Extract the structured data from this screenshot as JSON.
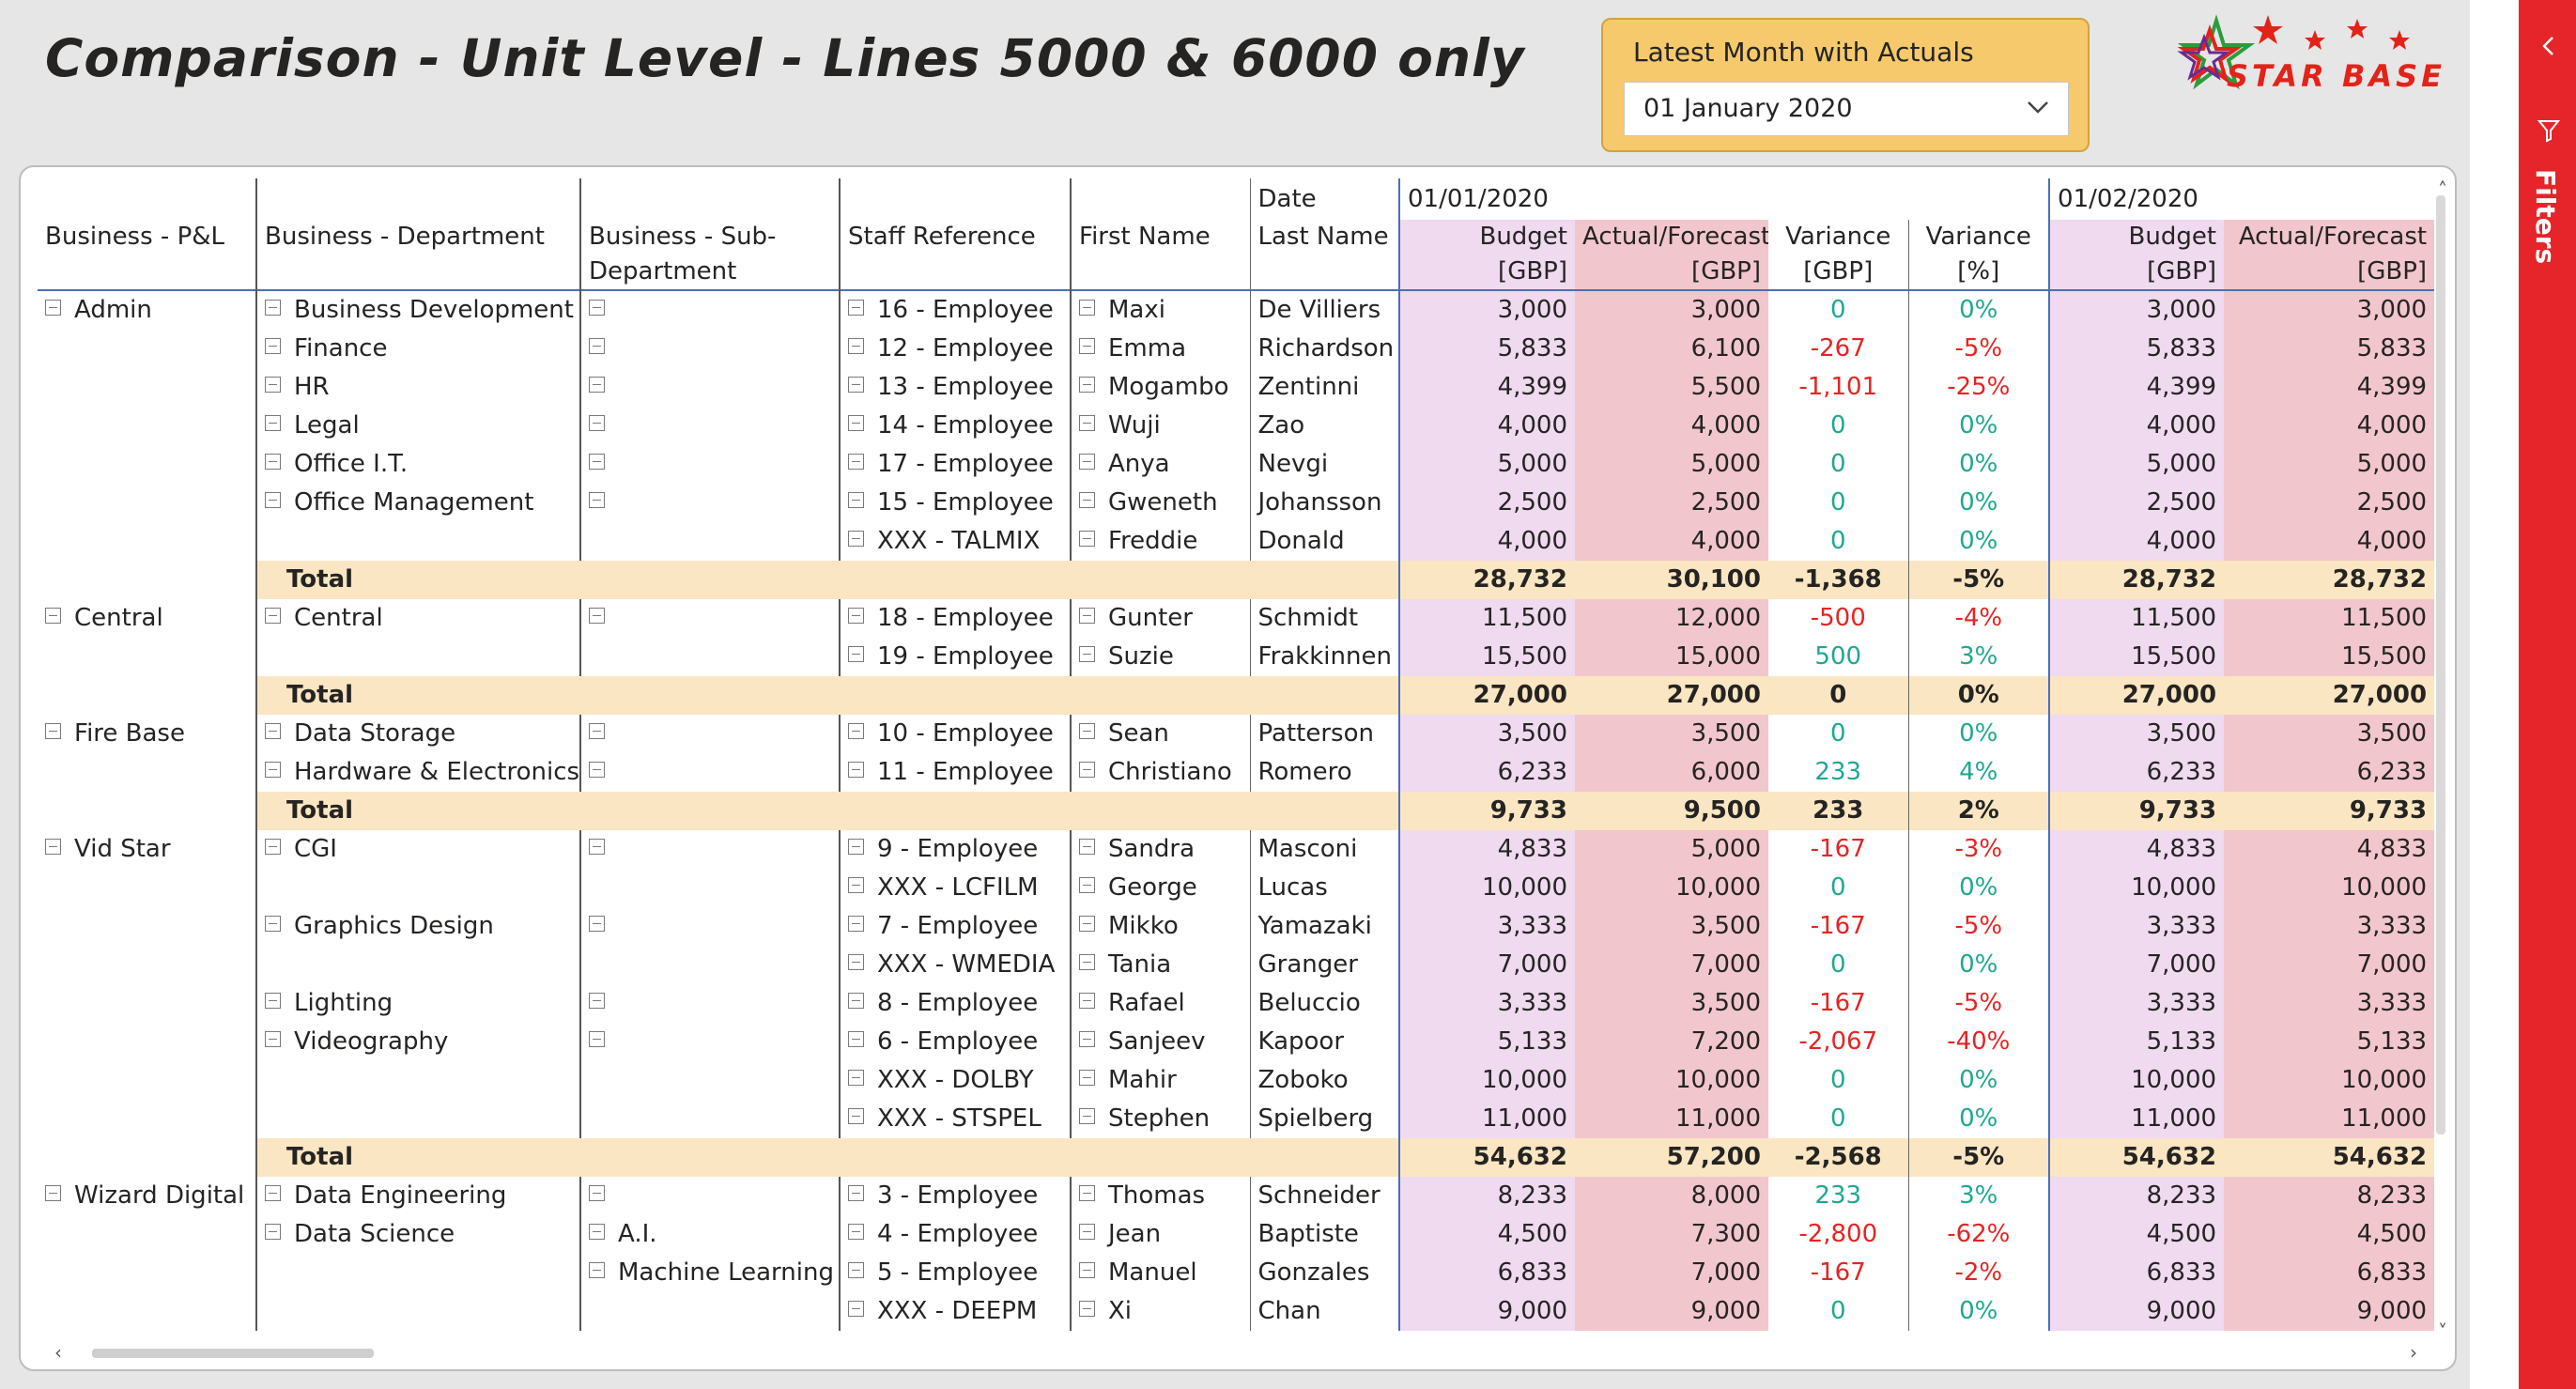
{
  "title": "Comparison - Unit Level - Lines 5000 & 6000 only",
  "slicer": {
    "label": "Latest Month with Actuals",
    "value": "01 January 2020"
  },
  "logo": {
    "text": "STAR BASE"
  },
  "filters_pane": {
    "label": "Filters"
  },
  "matrix": {
    "header_top": {
      "date_label": "Date",
      "month1": "01/01/2020",
      "month2": "01/02/2020"
    },
    "columns": {
      "pl": "Business - P&L",
      "dept": "Business - Department",
      "subdept": "Business - Sub-Department",
      "staff": "Staff Reference",
      "first": "First Name",
      "last": "Last Name",
      "budget": "Budget [GBP]",
      "actual": "Actual/Forecast [GBP]",
      "var_gbp": "Variance [GBP]",
      "var_pct": "Variance [%]",
      "budget2": "Budget [GBP]",
      "actual2": "Actual/Forecast [GBP]"
    },
    "rows": [
      {
        "type": "row",
        "pl": "Admin",
        "dept": "Business Development",
        "sub": "",
        "subExp": true,
        "staff": "16 - Employee",
        "first": "Maxi",
        "last": "De Villiers",
        "b": "3,000",
        "a": "3,000",
        "v": "0",
        "p": "0%",
        "vc": "green",
        "b2": "3,000",
        "a2": "3,000"
      },
      {
        "type": "row",
        "pl": "",
        "dept": "Finance",
        "sub": "",
        "subExp": true,
        "staff": "12 - Employee",
        "first": "Emma",
        "last": "Richardson",
        "b": "5,833",
        "a": "6,100",
        "v": "-267",
        "p": "-5%",
        "vc": "red",
        "b2": "5,833",
        "a2": "5,833"
      },
      {
        "type": "row",
        "pl": "",
        "dept": "HR",
        "sub": "",
        "subExp": true,
        "staff": "13 - Employee",
        "first": "Mogambo",
        "last": "Zentinni",
        "b": "4,399",
        "a": "5,500",
        "v": "-1,101",
        "p": "-25%",
        "vc": "red",
        "b2": "4,399",
        "a2": "4,399"
      },
      {
        "type": "row",
        "pl": "",
        "dept": "Legal",
        "sub": "",
        "subExp": true,
        "staff": "14 - Employee",
        "first": "Wuji",
        "last": "Zao",
        "b": "4,000",
        "a": "4,000",
        "v": "0",
        "p": "0%",
        "vc": "green",
        "b2": "4,000",
        "a2": "4,000"
      },
      {
        "type": "row",
        "pl": "",
        "dept": "Office I.T.",
        "sub": "",
        "subExp": true,
        "staff": "17 - Employee",
        "first": "Anya",
        "last": "Nevgi",
        "b": "5,000",
        "a": "5,000",
        "v": "0",
        "p": "0%",
        "vc": "green",
        "b2": "5,000",
        "a2": "5,000"
      },
      {
        "type": "row",
        "pl": "",
        "dept": "Office Management",
        "sub": "",
        "subExp": true,
        "staff": "15 - Employee",
        "first": "Gweneth",
        "last": "Johansson",
        "b": "2,500",
        "a": "2,500",
        "v": "0",
        "p": "0%",
        "vc": "green",
        "b2": "2,500",
        "a2": "2,500"
      },
      {
        "type": "row",
        "pl": "",
        "dept": "",
        "deptNoExp": true,
        "sub": "",
        "subExp": false,
        "staff": "XXX - TALMIX",
        "first": "Freddie",
        "last": "Donald",
        "b": "4,000",
        "a": "4,000",
        "v": "0",
        "p": "0%",
        "vc": "green",
        "b2": "4,000",
        "a2": "4,000"
      },
      {
        "type": "total",
        "label": "Total",
        "b": "28,732",
        "a": "30,100",
        "v": "-1,368",
        "p": "-5%",
        "b2": "28,732",
        "a2": "28,732"
      },
      {
        "type": "row",
        "pl": "Central",
        "dept": "Central",
        "sub": "",
        "subExp": true,
        "staff": "18 - Employee",
        "first": "Gunter",
        "last": "Schmidt",
        "b": "11,500",
        "a": "12,000",
        "v": "-500",
        "p": "-4%",
        "vc": "red",
        "b2": "11,500",
        "a2": "11,500"
      },
      {
        "type": "row",
        "pl": "",
        "dept": "",
        "deptNoExp": true,
        "sub": "",
        "subExp": false,
        "staff": "19 - Employee",
        "first": "Suzie",
        "last": "Frakkinnen",
        "b": "15,500",
        "a": "15,000",
        "v": "500",
        "p": "3%",
        "vc": "green",
        "b2": "15,500",
        "a2": "15,500"
      },
      {
        "type": "total",
        "label": "Total",
        "b": "27,000",
        "a": "27,000",
        "v": "0",
        "p": "0%",
        "b2": "27,000",
        "a2": "27,000"
      },
      {
        "type": "row",
        "pl": "Fire Base",
        "dept": "Data Storage",
        "sub": "",
        "subExp": true,
        "staff": "10 - Employee",
        "first": "Sean",
        "last": "Patterson",
        "b": "3,500",
        "a": "3,500",
        "v": "0",
        "p": "0%",
        "vc": "green",
        "b2": "3,500",
        "a2": "3,500"
      },
      {
        "type": "row",
        "pl": "",
        "dept": "Hardware & Electronics",
        "sub": "",
        "subExp": true,
        "staff": "11 - Employee",
        "first": "Christiano",
        "last": "Romero",
        "b": "6,233",
        "a": "6,000",
        "v": "233",
        "p": "4%",
        "vc": "green",
        "b2": "6,233",
        "a2": "6,233"
      },
      {
        "type": "total",
        "label": "Total",
        "b": "9,733",
        "a": "9,500",
        "v": "233",
        "p": "2%",
        "b2": "9,733",
        "a2": "9,733"
      },
      {
        "type": "row",
        "pl": "Vid Star",
        "dept": "CGI",
        "sub": "",
        "subExp": true,
        "staff": "9 - Employee",
        "first": "Sandra",
        "last": "Masconi",
        "b": "4,833",
        "a": "5,000",
        "v": "-167",
        "p": "-3%",
        "vc": "red",
        "b2": "4,833",
        "a2": "4,833"
      },
      {
        "type": "row",
        "pl": "",
        "dept": "",
        "deptNoExp": true,
        "sub": "",
        "subExp": false,
        "staff": "XXX - LCFILM",
        "first": "George",
        "last": "Lucas",
        "b": "10,000",
        "a": "10,000",
        "v": "0",
        "p": "0%",
        "vc": "green",
        "b2": "10,000",
        "a2": "10,000"
      },
      {
        "type": "row",
        "pl": "",
        "dept": "Graphics Design",
        "sub": "",
        "subExp": true,
        "staff": "7 - Employee",
        "first": "Mikko",
        "last": "Yamazaki",
        "b": "3,333",
        "a": "3,500",
        "v": "-167",
        "p": "-5%",
        "vc": "red",
        "b2": "3,333",
        "a2": "3,333"
      },
      {
        "type": "row",
        "pl": "",
        "dept": "",
        "deptNoExp": true,
        "sub": "",
        "subExp": false,
        "staff": "XXX - WMEDIA",
        "first": "Tania",
        "last": "Granger",
        "b": "7,000",
        "a": "7,000",
        "v": "0",
        "p": "0%",
        "vc": "green",
        "b2": "7,000",
        "a2": "7,000"
      },
      {
        "type": "row",
        "pl": "",
        "dept": "Lighting",
        "sub": "",
        "subExp": true,
        "staff": "8 - Employee",
        "first": "Rafael",
        "last": "Beluccio",
        "b": "3,333",
        "a": "3,500",
        "v": "-167",
        "p": "-5%",
        "vc": "red",
        "b2": "3,333",
        "a2": "3,333"
      },
      {
        "type": "row",
        "pl": "",
        "dept": "Videography",
        "sub": "",
        "subExp": true,
        "staff": "6 - Employee",
        "first": "Sanjeev",
        "last": "Kapoor",
        "b": "5,133",
        "a": "7,200",
        "v": "-2,067",
        "p": "-40%",
        "vc": "red",
        "b2": "5,133",
        "a2": "5,133"
      },
      {
        "type": "row",
        "pl": "",
        "dept": "",
        "deptNoExp": true,
        "sub": "",
        "subExp": false,
        "staff": "XXX - DOLBY",
        "first": "Mahir",
        "last": "Zoboko",
        "b": "10,000",
        "a": "10,000",
        "v": "0",
        "p": "0%",
        "vc": "green",
        "b2": "10,000",
        "a2": "10,000"
      },
      {
        "type": "row",
        "pl": "",
        "dept": "",
        "deptNoExp": true,
        "sub": "",
        "subExp": false,
        "staff": "XXX - STSPEL",
        "first": "Stephen",
        "last": "Spielberg",
        "b": "11,000",
        "a": "11,000",
        "v": "0",
        "p": "0%",
        "vc": "green",
        "b2": "11,000",
        "a2": "11,000"
      },
      {
        "type": "total",
        "label": "Total",
        "b": "54,632",
        "a": "57,200",
        "v": "-2,568",
        "p": "-5%",
        "b2": "54,632",
        "a2": "54,632"
      },
      {
        "type": "row",
        "pl": "Wizard Digital",
        "dept": "Data Engineering",
        "sub": "",
        "subExp": true,
        "staff": "3 - Employee",
        "first": "Thomas",
        "last": "Schneider",
        "b": "8,233",
        "a": "8,000",
        "v": "233",
        "p": "3%",
        "vc": "green",
        "b2": "8,233",
        "a2": "8,233"
      },
      {
        "type": "row",
        "pl": "",
        "dept": "Data Science",
        "sub": "A.I.",
        "subExp": true,
        "staff": "4 - Employee",
        "first": "Jean",
        "last": "Baptiste",
        "b": "4,500",
        "a": "7,300",
        "v": "-2,800",
        "p": "-62%",
        "vc": "red",
        "b2": "4,500",
        "a2": "4,500"
      },
      {
        "type": "row",
        "pl": "",
        "dept": "",
        "deptNoExp": true,
        "sub": "Machine Learning",
        "subExp": true,
        "staff": "5 - Employee",
        "first": "Manuel",
        "last": "Gonzales",
        "b": "6,833",
        "a": "7,000",
        "v": "-167",
        "p": "-2%",
        "vc": "red",
        "b2": "6,833",
        "a2": "6,833"
      },
      {
        "type": "row",
        "pl": "",
        "dept": "",
        "deptNoExp": true,
        "sub": "",
        "subExp": false,
        "staff": "XXX - DEEPM",
        "first": "Xi",
        "last": "Chan",
        "b": "9,000",
        "a": "9,000",
        "v": "0",
        "p": "0%",
        "vc": "green",
        "b2": "9,000",
        "a2": "9,000"
      }
    ]
  },
  "colors": {
    "budget_bg": "#efdaef",
    "actual_bg": "#f2c6cd",
    "total_bg": "#fae6c2",
    "positive": "#1fa890",
    "negative": "#e52424",
    "slicer_bg": "#f5c96c",
    "filters_bar": "#e5252a"
  }
}
